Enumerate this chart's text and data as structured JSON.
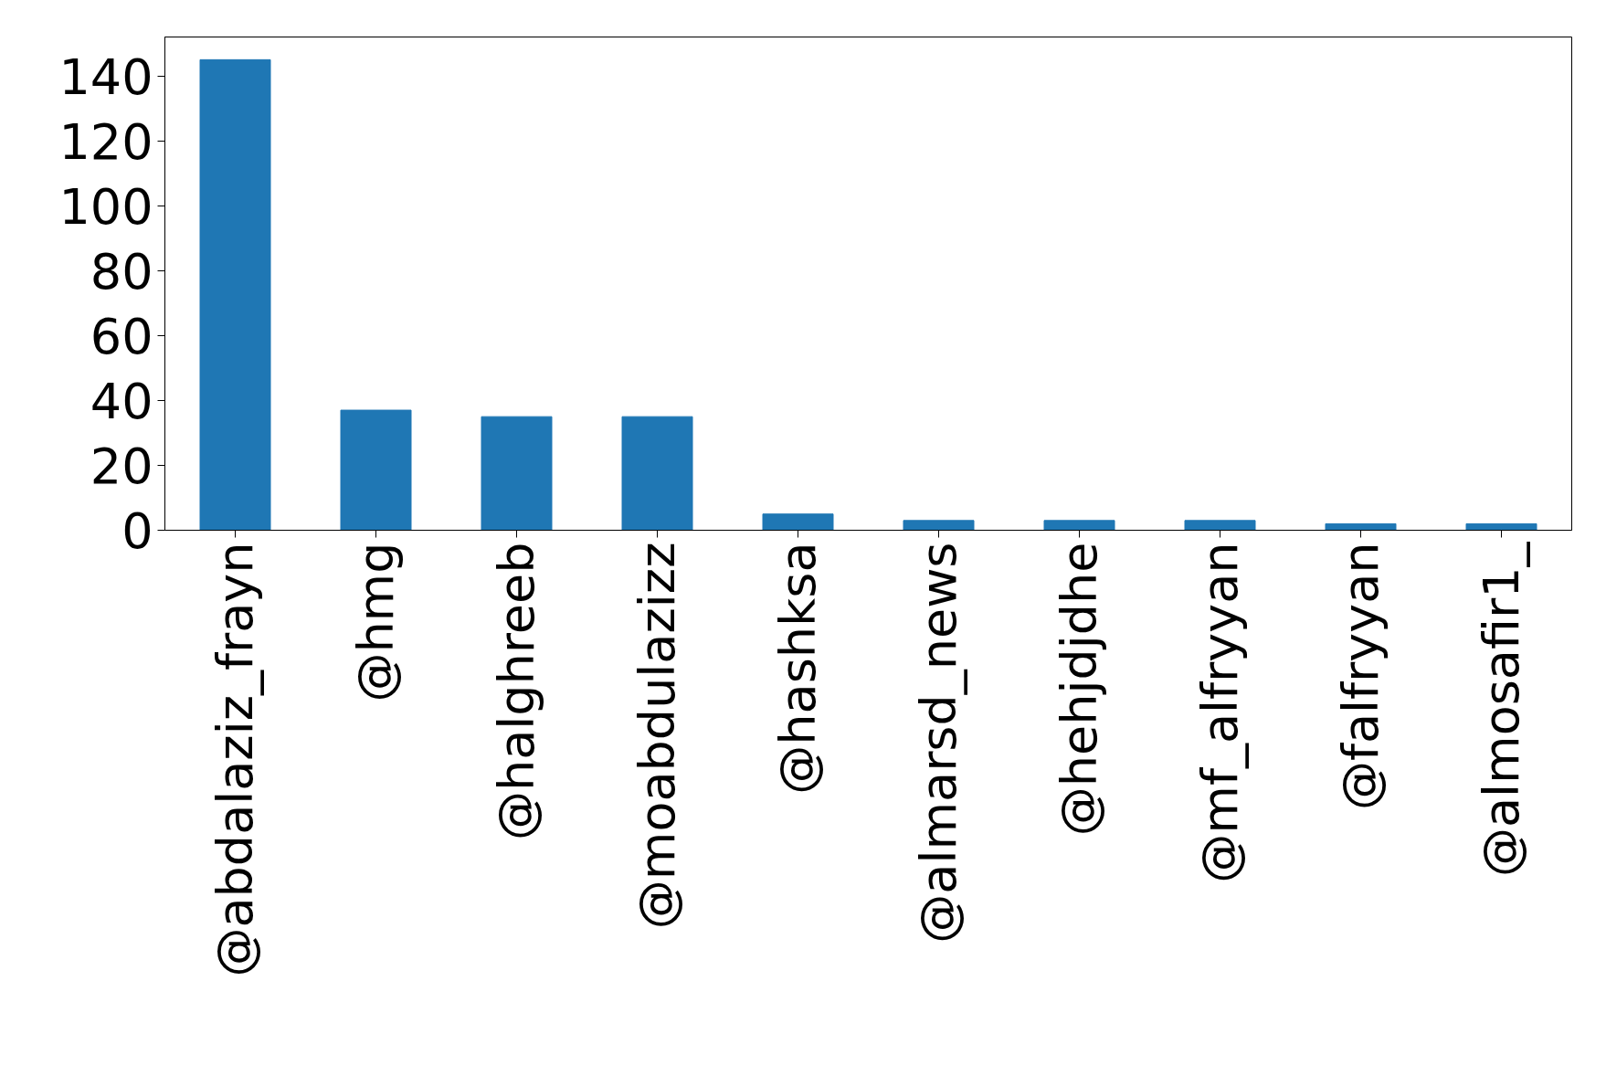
{
  "chart_data": {
    "type": "bar",
    "categories": [
      "@abdalaziz_frayn",
      "@hmg",
      "@halghreeb",
      "@moabdulazizz",
      "@hashksa",
      "@almarsd_news",
      "@hehjdjdhe",
      "@mf_alfryyan",
      "@falfryyan",
      "@almosafir1_"
    ],
    "series": [
      {
        "color": "#1f77b4",
        "values": [
          145,
          37,
          35,
          35,
          5,
          3,
          3,
          3,
          2,
          2
        ]
      }
    ],
    "ylim": [
      0,
      152
    ],
    "yticks": [
      0,
      20,
      40,
      60,
      80,
      100,
      120,
      140
    ],
    "grid": false
  }
}
